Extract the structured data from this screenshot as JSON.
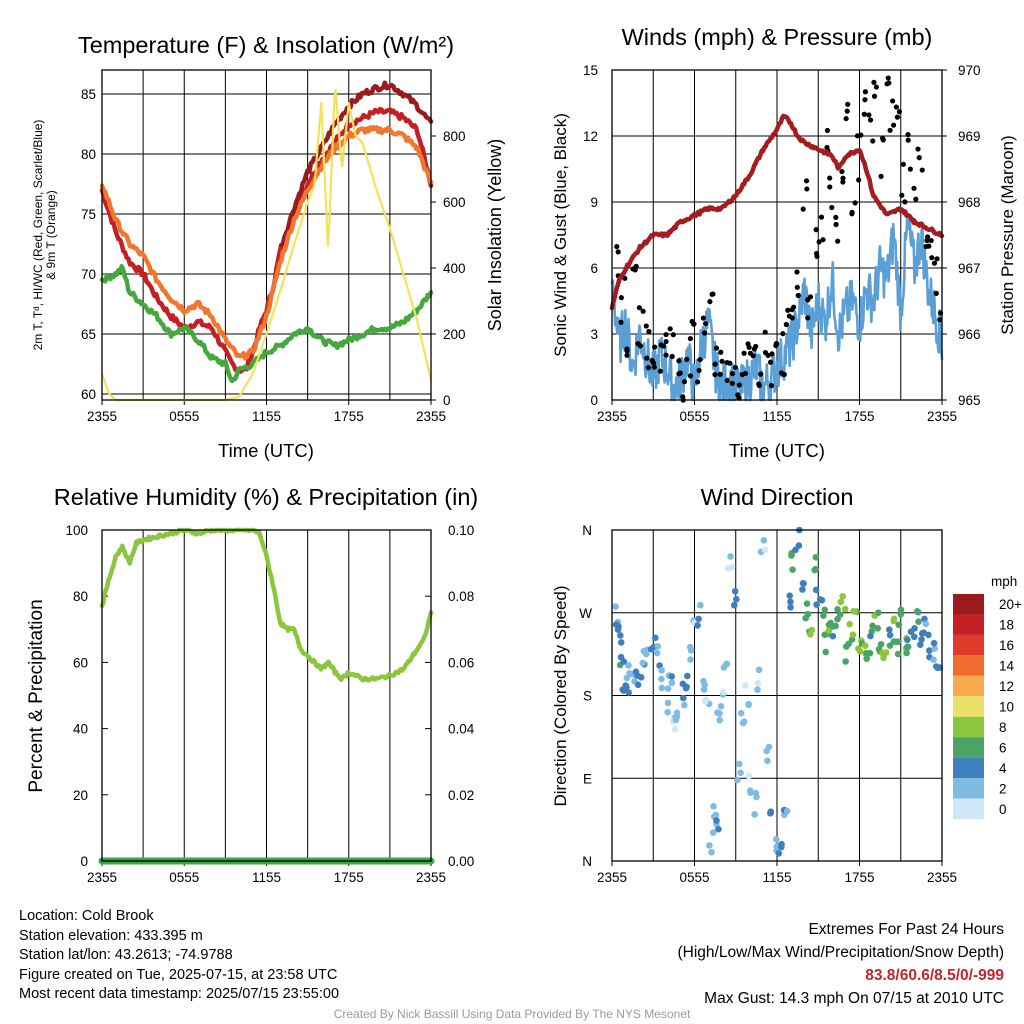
{
  "colors": {
    "temp_red": "#c42024",
    "dewpoint_green": "#44a83f",
    "heatindex_maroon": "#9a1b1e",
    "temp9m_orange": "#f0772f",
    "insolation_yellow": "#f6e15a",
    "wind_blue": "#5a9fd6",
    "gust_black": "#000000",
    "pressure_maroon": "#a51c1f",
    "rh_green": "#8cc63f",
    "precip_green": "#3aa64a",
    "extremes_red": "#c0262b"
  },
  "chart_data": [
    {
      "id": "temp",
      "type": "line",
      "title": "Temperature (F) & Insolation (W/m²)",
      "xlabel": "Time (UTC)",
      "ylabel_lines": [
        "2m T, Tᵈ, HI/WC (Red, Green, Scarlet/Blue)",
        "& 9m T (Orange)"
      ],
      "y2label": "Solar Insolation (Yellow)",
      "xlim": [
        0,
        24
      ],
      "ylim": [
        59.5,
        87
      ],
      "y2lim": [
        0,
        1000
      ],
      "x_tick_labels": [
        "2355",
        "0555",
        "1155",
        "1755",
        "2355"
      ],
      "y_ticks": [
        60,
        65,
        70,
        75,
        80,
        85
      ],
      "y2_ticks": [
        0,
        200,
        400,
        600,
        800
      ],
      "series": [
        {
          "name": "2m T",
          "color": "#c42024",
          "x": [
            0,
            1,
            2,
            3,
            4,
            5,
            6,
            7,
            8,
            9,
            9.5,
            10,
            10.5,
            11,
            11.5,
            12,
            12.5,
            13,
            14,
            15,
            16,
            17,
            18,
            19,
            20,
            21,
            22,
            23,
            24
          ],
          "y": [
            77.0,
            73.5,
            71.0,
            70.0,
            68.0,
            66.5,
            65.5,
            66.0,
            65.5,
            63.5,
            62.5,
            62.0,
            62.0,
            63.5,
            65.5,
            67.0,
            69.0,
            72.0,
            75.0,
            77.5,
            79.5,
            81.0,
            82.5,
            83.0,
            83.5,
            83.5,
            83.0,
            82.0,
            77.5
          ]
        },
        {
          "name": "Td",
          "color": "#44a83f",
          "x": [
            0,
            1,
            1.5,
            2,
            3,
            4,
            5,
            6,
            7,
            8,
            9,
            9.5,
            10,
            11,
            12,
            13,
            14,
            15,
            16,
            17,
            18,
            19,
            20,
            21,
            22,
            23,
            24
          ],
          "y": [
            69.5,
            70.0,
            70.5,
            68.5,
            67.5,
            66.5,
            65.0,
            65.5,
            64.5,
            63.0,
            62.5,
            61.0,
            62.0,
            62.5,
            63.5,
            64.0,
            65.0,
            65.5,
            64.5,
            64.0,
            64.5,
            65.0,
            65.5,
            65.5,
            66.0,
            67.0,
            68.5
          ]
        },
        {
          "name": "HI/WC",
          "color": "#9a1b1e",
          "x": [
            13,
            14,
            15,
            16,
            17,
            18,
            19,
            20,
            21,
            22,
            23,
            24
          ],
          "y": [
            72.0,
            75.5,
            78.5,
            80.5,
            82.5,
            84.0,
            85.0,
            85.5,
            85.8,
            85.0,
            84.0,
            82.5
          ]
        },
        {
          "name": "9m T",
          "color": "#f0772f",
          "x": [
            0,
            1,
            2,
            3,
            4,
            5,
            6,
            7,
            8,
            9,
            10,
            11,
            12,
            13,
            14,
            15,
            16,
            17,
            18,
            19,
            20,
            21,
            22,
            23,
            24
          ],
          "y": [
            77.5,
            74.5,
            72.5,
            71.5,
            69.5,
            68.0,
            67.0,
            67.5,
            66.5,
            64.5,
            63.0,
            63.5,
            66.5,
            71.0,
            74.5,
            77.0,
            79.0,
            80.5,
            81.5,
            82.0,
            82.0,
            82.0,
            81.5,
            80.5,
            77.5
          ]
        },
        {
          "name": "Insolation",
          "color": "#f6e15a",
          "axis": "right",
          "x": [
            0,
            0.5,
            1,
            2,
            4,
            6,
            8,
            9,
            10,
            11,
            12,
            13,
            14,
            15,
            15.5,
            16,
            16.5,
            17,
            17.5,
            18,
            18.5,
            19,
            20,
            21,
            22,
            23,
            24
          ],
          "y": [
            80,
            20,
            0,
            0,
            0,
            0,
            0,
            0,
            10,
            80,
            200,
            330,
            470,
            600,
            650,
            900,
            450,
            960,
            700,
            900,
            800,
            780,
            640,
            520,
            380,
            240,
            60
          ]
        }
      ]
    },
    {
      "id": "winds",
      "type": "line",
      "title": "Winds (mph) & Pressure (mb)",
      "xlabel": "Time (UTC)",
      "ylabel": "Sonic Wind & Gust (Blue, Black)",
      "y2label": "Station Pressure (Maroon)",
      "xlim": [
        0,
        24
      ],
      "ylim": [
        0,
        15
      ],
      "y2lim": [
        965,
        970
      ],
      "x_tick_labels": [
        "2355",
        "0555",
        "1155",
        "1755",
        "2355"
      ],
      "y_ticks": [
        0,
        3,
        6,
        9,
        12,
        15
      ],
      "y2_ticks": [
        965,
        966,
        967,
        968,
        969,
        970
      ],
      "series": [
        {
          "name": "Sonic Wind",
          "color": "#5a9fd6",
          "x": [
            0,
            0.5,
            1,
            1.5,
            2,
            2.5,
            3,
            3.5,
            4,
            4.5,
            5,
            5.5,
            6,
            6.5,
            7,
            7.5,
            8,
            8.5,
            9,
            9.5,
            10,
            10.5,
            11,
            11.5,
            12,
            12.5,
            13,
            13.5,
            14,
            14.5,
            15,
            15.5,
            16,
            16.5,
            17,
            17.5,
            18,
            18.5,
            19,
            19.5,
            20,
            20.5,
            21,
            21.5,
            22,
            22.5,
            23,
            23.5,
            24
          ],
          "y": [
            5.5,
            2.5,
            3.5,
            1.5,
            3.0,
            2.0,
            1.0,
            2.0,
            1.5,
            0.5,
            1.0,
            2.0,
            0.5,
            2.5,
            3.5,
            1.5,
            0.5,
            1.0,
            0.5,
            0.5,
            1.0,
            1.5,
            0.5,
            1.0,
            1.5,
            2.0,
            2.5,
            3.5,
            5.0,
            3.0,
            4.5,
            3.5,
            5.5,
            3.0,
            4.0,
            4.5,
            3.5,
            5.0,
            4.5,
            6.0,
            5.5,
            7.5,
            4.0,
            8.0,
            6.0,
            7.5,
            5.0,
            4.0,
            2.5
          ]
        },
        {
          "name": "Gust",
          "color": "#000000",
          "marker": "dot",
          "x": [
            0,
            0.4,
            0.8,
            1.2,
            1.6,
            2.0,
            2.4,
            2.8,
            3.2,
            3.6,
            4.0,
            4.4,
            4.8,
            5.2,
            5.6,
            6.0,
            6.4,
            6.8,
            7.2,
            7.6,
            8.0,
            8.4,
            8.8,
            9.2,
            9.6,
            10.0,
            10.4,
            10.8,
            11.2,
            11.6,
            12.0,
            12.4,
            12.8,
            13.2,
            13.6,
            14.0,
            14.4,
            14.8,
            15.2,
            15.6,
            16.0,
            16.4,
            16.8,
            17.2,
            17.6,
            18.0,
            18.4,
            18.8,
            19.2,
            19.6,
            20.0,
            20.4,
            20.8,
            21.2,
            21.6,
            22.0,
            22.4,
            22.8,
            23.2,
            23.6,
            24.0
          ],
          "y": [
            8.5,
            6.5,
            4.5,
            3.0,
            5.0,
            3.5,
            3.0,
            2.5,
            1.5,
            2.0,
            3.0,
            2.5,
            1.5,
            1.0,
            2.0,
            2.5,
            1.0,
            4.0,
            5.0,
            2.0,
            1.5,
            1.0,
            1.5,
            1.0,
            2.0,
            1.5,
            2.5,
            1.0,
            2.0,
            1.5,
            2.5,
            2.0,
            3.0,
            4.0,
            5.5,
            9.5,
            4.5,
            7.5,
            8.0,
            11.5,
            9.0,
            8.0,
            10.5,
            12.5,
            9.5,
            11.0,
            13.0,
            12.0,
            14.0,
            11.0,
            14.3,
            13.0,
            12.5,
            10.0,
            11.5,
            9.0,
            10.5,
            8.0,
            7.0,
            5.5,
            4.0
          ]
        },
        {
          "name": "Pressure",
          "color": "#a51c1f",
          "axis": "right",
          "x": [
            0,
            0.5,
            1,
            2,
            3,
            4,
            5,
            6,
            7,
            8,
            9,
            10,
            11,
            12,
            12.5,
            13,
            13.5,
            14,
            15,
            16,
            16.5,
            17,
            18,
            18.5,
            19,
            20,
            21,
            22,
            23,
            24
          ],
          "y": [
            966.4,
            966.8,
            967.0,
            967.3,
            967.5,
            967.5,
            967.7,
            967.8,
            967.9,
            967.9,
            968.1,
            968.4,
            968.8,
            969.1,
            969.3,
            969.2,
            969.0,
            968.9,
            968.8,
            968.7,
            968.5,
            968.7,
            968.8,
            968.5,
            968.1,
            967.8,
            967.9,
            967.7,
            967.6,
            967.5
          ]
        }
      ]
    },
    {
      "id": "rh",
      "type": "line",
      "title": "Relative Humidity (%) & Precipitation (in)",
      "ylabel": "Percent & Precipitation",
      "xlim": [
        0,
        24
      ],
      "ylim": [
        0,
        100
      ],
      "y2lim": [
        0,
        0.1
      ],
      "x_tick_labels": [
        "2355",
        "0555",
        "1155",
        "1755",
        "2355"
      ],
      "y_ticks": [
        0,
        20,
        40,
        60,
        80,
        100
      ],
      "y2_ticks": [
        "0.00",
        "0.02",
        "0.04",
        "0.06",
        "0.08",
        "0.10"
      ],
      "series": [
        {
          "name": "RH",
          "color": "#8cc63f",
          "x": [
            0,
            0.5,
            1,
            1.5,
            2,
            2.5,
            3,
            4,
            5,
            6,
            7,
            8,
            9,
            10,
            11,
            11.5,
            12,
            12.5,
            13,
            13.5,
            14,
            14.5,
            15,
            15.5,
            16,
            16.5,
            17,
            17.5,
            18,
            18.5,
            19,
            20,
            21,
            22,
            22.5,
            23,
            23.5,
            24
          ],
          "y": [
            77,
            85,
            92,
            95,
            90,
            96,
            97,
            98,
            99,
            100,
            99,
            100,
            100,
            100,
            100,
            99,
            92,
            83,
            72,
            70,
            70,
            64,
            62,
            60,
            58,
            60,
            57,
            55,
            57,
            56,
            55,
            55,
            56,
            58,
            61,
            64,
            67,
            75
          ]
        },
        {
          "name": "Precipitation",
          "color": "#3aa64a",
          "axis": "right",
          "x": [
            0,
            24
          ],
          "y": [
            0,
            0
          ]
        }
      ]
    },
    {
      "id": "winddir",
      "type": "scatter",
      "title": "Wind Direction",
      "ylabel": "Direction (Colored By Speed)",
      "xlim": [
        0,
        24
      ],
      "ylim": [
        0,
        360
      ],
      "x_tick_labels": [
        "2355",
        "0555",
        "1155",
        "1755",
        "2355"
      ],
      "y_tick_labels": [
        "N",
        "E",
        "S",
        "W",
        "N"
      ],
      "colorbar": {
        "unit": "mph",
        "labels": [
          "20+",
          "18",
          "16",
          "14",
          "12",
          "10",
          "8",
          "6",
          "4",
          "2",
          "0"
        ],
        "colors": [
          "#9a1b1e",
          "#c42024",
          "#e23a2a",
          "#f06b2c",
          "#f7a94b",
          "#ece167",
          "#8cc63f",
          "#4aa466",
          "#3f7fbd",
          "#7fbce4",
          "#cfe8f7"
        ]
      },
      "points": {
        "x": [
          0.1,
          0.3,
          0.5,
          0.7,
          0.9,
          1.1,
          1.3,
          1.6,
          2.0,
          2.3,
          2.6,
          3.0,
          3.3,
          3.6,
          4.0,
          4.2,
          4.5,
          4.8,
          5.1,
          5.4,
          5.7,
          6.0,
          6.3,
          6.6,
          6.9,
          7.2,
          7.4,
          7.6,
          7.8,
          8.0,
          8.3,
          8.6,
          8.9,
          9.2,
          9.5,
          9.8,
          10.1,
          10.4,
          10.7,
          11.0,
          11.3,
          11.6,
          12.0,
          12.3,
          12.6,
          12.9,
          13.2,
          13.5,
          13.8,
          14.1,
          14.4,
          14.7,
          15.0,
          15.3,
          15.6,
          15.9,
          16.2,
          16.5,
          16.8,
          17.1,
          17.4,
          17.7,
          18.0,
          18.3,
          18.6,
          18.9,
          19.2,
          19.5,
          19.8,
          20.1,
          20.4,
          20.7,
          21.0,
          21.3,
          21.6,
          21.9,
          22.2,
          22.5,
          22.8,
          23.1,
          23.4,
          23.7,
          24.0
        ],
        "y": [
          270,
          260,
          240,
          210,
          185,
          195,
          210,
          200,
          190,
          215,
          230,
          240,
          220,
          195,
          175,
          200,
          150,
          165,
          180,
          200,
          230,
          250,
          265,
          195,
          180,
          20,
          60,
          40,
          150,
          180,
          210,
          320,
          290,
          100,
          150,
          180,
          80,
          60,
          200,
          350,
          120,
          40,
          20,
          10,
          50,
          280,
          330,
          350,
          300,
          270,
          250,
          320,
          290,
          275,
          240,
          260,
          250,
          270,
          280,
          230,
          250,
          265,
          240,
          230,
          220,
          245,
          260,
          235,
          215,
          240,
          250,
          225,
          260,
          240,
          230,
          255,
          265,
          240,
          250,
          235,
          230,
          220,
          205
        ],
        "speed": [
          2,
          3,
          4,
          5,
          4,
          3,
          2,
          3,
          4,
          3,
          2,
          4,
          3,
          1,
          2,
          3,
          1,
          2,
          3,
          4,
          2,
          1,
          3,
          2,
          1,
          2,
          1,
          3,
          2,
          1,
          2,
          1,
          3,
          1,
          2,
          1,
          1,
          2,
          1,
          1,
          2,
          3,
          3,
          4,
          3,
          4,
          6,
          5,
          4,
          5,
          7,
          6,
          4,
          5,
          6,
          7,
          5,
          7,
          8,
          6,
          7,
          7,
          8,
          7,
          6,
          5,
          7,
          6,
          8,
          5,
          7,
          6,
          6,
          7,
          5,
          4,
          5,
          4,
          3,
          4,
          3,
          4,
          3
        ]
      }
    }
  ],
  "info_left": {
    "location": "Location: Cold Brook",
    "elevation": "Station elevation: 433.395 m",
    "latlon": "Station lat/lon: 43.2613; -74.9788",
    "created": "Figure created on Tue, 2025-07-15, at 23:58 UTC",
    "recent": "Most recent data timestamp: 2025/07/15 23:55:00"
  },
  "info_right": {
    "heading": "Extremes For Past 24 Hours",
    "legend": "(High/Low/Max Wind/Precipitation/Snow Depth)",
    "values": "83.8/60.6/8.5/0/-999",
    "max_gust": "Max Gust: 14.3 mph On 07/15 at 2010 UTC"
  },
  "credit": "Created By Nick Bassill Using Data Provided By The NYS Mesonet"
}
